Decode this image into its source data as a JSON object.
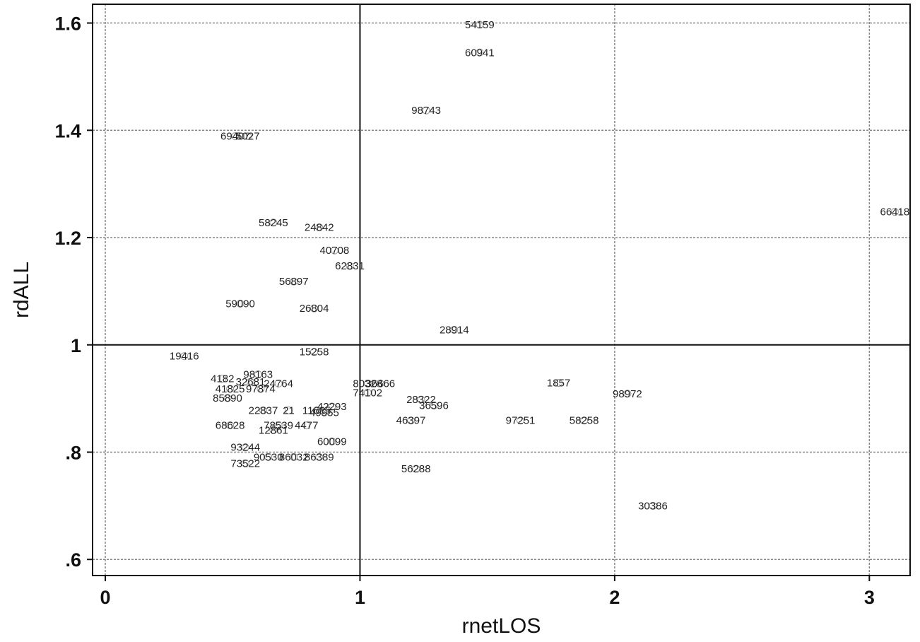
{
  "chart_data": {
    "type": "scatter",
    "title": "",
    "xlabel": "rnetLOS",
    "ylabel": "rdALL",
    "xlim": [
      -0.05,
      3.16
    ],
    "ylim": [
      0.57,
      1.635
    ],
    "xticks": [
      {
        "value": 0,
        "label": "0"
      },
      {
        "value": 1,
        "label": "1"
      },
      {
        "value": 2,
        "label": "2"
      },
      {
        "value": 3,
        "label": "3"
      }
    ],
    "yticks": [
      {
        "value": 0.6,
        "label": ".6"
      },
      {
        "value": 0.8,
        "label": ".8"
      },
      {
        "value": 1,
        "label": "1"
      },
      {
        "value": 1.2,
        "label": "1.2"
      },
      {
        "value": 1.4,
        "label": "1.4"
      },
      {
        "value": 1.6,
        "label": "1.6"
      }
    ],
    "grid": true,
    "reference_lines": {
      "x": 1,
      "y": 1
    },
    "points": [
      {
        "x": 1.47,
        "y": 1.597,
        "label": "54159"
      },
      {
        "x": 1.47,
        "y": 1.545,
        "label": "60941"
      },
      {
        "x": 1.26,
        "y": 1.437,
        "label": "98743"
      },
      {
        "x": 0.51,
        "y": 1.389,
        "label": "69407"
      },
      {
        "x": 0.56,
        "y": 1.389,
        "label": "5027"
      },
      {
        "x": 3.1,
        "y": 1.248,
        "label": "66418"
      },
      {
        "x": 0.66,
        "y": 1.228,
        "label": "58245"
      },
      {
        "x": 0.84,
        "y": 1.219,
        "label": "24842"
      },
      {
        "x": 0.9,
        "y": 1.176,
        "label": "40708"
      },
      {
        "x": 0.96,
        "y": 1.147,
        "label": "62831"
      },
      {
        "x": 0.74,
        "y": 1.118,
        "label": "56897"
      },
      {
        "x": 0.53,
        "y": 1.077,
        "label": "59090"
      },
      {
        "x": 0.82,
        "y": 1.068,
        "label": "26804"
      },
      {
        "x": 1.37,
        "y": 1.028,
        "label": "28914"
      },
      {
        "x": 0.82,
        "y": 0.987,
        "label": "15258"
      },
      {
        "x": 0.31,
        "y": 0.979,
        "label": "19416"
      },
      {
        "x": 0.6,
        "y": 0.945,
        "label": "98163"
      },
      {
        "x": 0.46,
        "y": 0.937,
        "label": "4182"
      },
      {
        "x": 0.57,
        "y": 0.931,
        "label": "32681"
      },
      {
        "x": 0.68,
        "y": 0.928,
        "label": "24764"
      },
      {
        "x": 0.49,
        "y": 0.918,
        "label": "41825"
      },
      {
        "x": 0.61,
        "y": 0.918,
        "label": "97874"
      },
      {
        "x": 0.48,
        "y": 0.901,
        "label": "85890"
      },
      {
        "x": 1.03,
        "y": 0.928,
        "label": "80328"
      },
      {
        "x": 1.08,
        "y": 0.928,
        "label": "36666"
      },
      {
        "x": 1.03,
        "y": 0.911,
        "label": "74102"
      },
      {
        "x": 1.24,
        "y": 0.898,
        "label": "28322"
      },
      {
        "x": 1.29,
        "y": 0.887,
        "label": "36596"
      },
      {
        "x": 1.78,
        "y": 0.929,
        "label": "1857"
      },
      {
        "x": 2.05,
        "y": 0.909,
        "label": "98972"
      },
      {
        "x": 0.62,
        "y": 0.878,
        "label": "22837"
      },
      {
        "x": 0.72,
        "y": 0.878,
        "label": "21"
      },
      {
        "x": 0.83,
        "y": 0.878,
        "label": "11685"
      },
      {
        "x": 0.89,
        "y": 0.885,
        "label": "42293"
      },
      {
        "x": 0.86,
        "y": 0.874,
        "label": "49955"
      },
      {
        "x": 1.2,
        "y": 0.859,
        "label": "46397"
      },
      {
        "x": 1.63,
        "y": 0.859,
        "label": "97251"
      },
      {
        "x": 1.88,
        "y": 0.859,
        "label": "58258"
      },
      {
        "x": 0.49,
        "y": 0.85,
        "label": "68628"
      },
      {
        "x": 0.68,
        "y": 0.85,
        "label": "78539"
      },
      {
        "x": 0.79,
        "y": 0.85,
        "label": "4477"
      },
      {
        "x": 0.66,
        "y": 0.841,
        "label": "12861"
      },
      {
        "x": 0.89,
        "y": 0.82,
        "label": "60099"
      },
      {
        "x": 0.55,
        "y": 0.809,
        "label": "93244"
      },
      {
        "x": 0.64,
        "y": 0.791,
        "label": "90530"
      },
      {
        "x": 0.74,
        "y": 0.791,
        "label": "86032"
      },
      {
        "x": 0.84,
        "y": 0.791,
        "label": "86389"
      },
      {
        "x": 0.55,
        "y": 0.779,
        "label": "73522"
      },
      {
        "x": 1.22,
        "y": 0.769,
        "label": "56288"
      },
      {
        "x": 2.15,
        "y": 0.7,
        "label": "30386"
      }
    ]
  }
}
